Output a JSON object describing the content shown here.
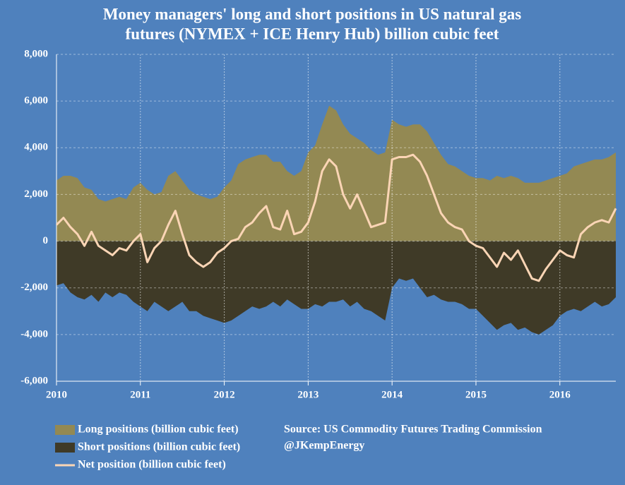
{
  "chart_data": {
    "type": "area",
    "title": [
      "Money managers' long and short positions in US natural gas",
      "futures (NYMEX + ICE Henry Hub) billion cubic feet"
    ],
    "annotations": [
      "Source: US Commodity Futures Trading Commission",
      "@JKempEnergy"
    ],
    "x": [
      2010.0,
      2010.083,
      2010.167,
      2010.25,
      2010.333,
      2010.417,
      2010.5,
      2010.583,
      2010.667,
      2010.75,
      2010.833,
      2010.917,
      2011.0,
      2011.083,
      2011.167,
      2011.25,
      2011.333,
      2011.417,
      2011.5,
      2011.583,
      2011.667,
      2011.75,
      2011.833,
      2011.917,
      2012.0,
      2012.083,
      2012.167,
      2012.25,
      2012.333,
      2012.417,
      2012.5,
      2012.583,
      2012.667,
      2012.75,
      2012.833,
      2012.917,
      2013.0,
      2013.083,
      2013.167,
      2013.25,
      2013.333,
      2013.417,
      2013.5,
      2013.583,
      2013.667,
      2013.75,
      2013.833,
      2013.917,
      2014.0,
      2014.083,
      2014.167,
      2014.25,
      2014.333,
      2014.417,
      2014.5,
      2014.583,
      2014.667,
      2014.75,
      2014.833,
      2014.917,
      2015.0,
      2015.083,
      2015.167,
      2015.25,
      2015.333,
      2015.417,
      2015.5,
      2015.583,
      2015.667,
      2015.75,
      2015.833,
      2015.917,
      2016.0,
      2016.083,
      2016.167,
      2016.25,
      2016.333,
      2016.417,
      2016.5,
      2016.583,
      2016.667
    ],
    "series": [
      {
        "name": "Long positions (billion cubic feet)",
        "color": "#938953",
        "kind": "area",
        "values": [
          2600,
          2800,
          2800,
          2700,
          2300,
          2200,
          1800,
          1700,
          1800,
          1900,
          1800,
          2300,
          2500,
          2200,
          2000,
          2100,
          2800,
          3000,
          2600,
          2200,
          2000,
          1900,
          1800,
          1900,
          2300,
          2600,
          3300,
          3500,
          3600,
          3700,
          3700,
          3400,
          3400,
          3000,
          2800,
          3000,
          3800,
          4100,
          5000,
          5800,
          5600,
          5000,
          4600,
          4400,
          4200,
          3900,
          3700,
          3800,
          5200,
          5000,
          4900,
          5000,
          5000,
          4700,
          4200,
          3700,
          3300,
          3200,
          3000,
          2800,
          2700,
          2700,
          2600,
          2800,
          2700,
          2800,
          2700,
          2500,
          2500,
          2500,
          2600,
          2700,
          2800,
          2900,
          3200,
          3300,
          3400,
          3500,
          3500,
          3600,
          3800
        ]
      },
      {
        "name": "Short positions (billion cubic feet)",
        "color": "#3f3a27",
        "kind": "area",
        "values": [
          -1900,
          -1800,
          -2200,
          -2400,
          -2500,
          -2300,
          -2600,
          -2200,
          -2400,
          -2200,
          -2300,
          -2600,
          -2800,
          -3000,
          -2600,
          -2800,
          -3000,
          -2800,
          -2600,
          -3000,
          -3000,
          -3200,
          -3300,
          -3400,
          -3500,
          -3400,
          -3200,
          -3000,
          -2800,
          -2900,
          -2800,
          -2600,
          -2800,
          -2500,
          -2700,
          -2900,
          -2900,
          -2700,
          -2800,
          -2600,
          -2600,
          -2500,
          -2800,
          -2600,
          -2900,
          -3000,
          -3200,
          -3400,
          -2000,
          -1600,
          -1700,
          -1600,
          -2000,
          -2400,
          -2300,
          -2500,
          -2600,
          -2600,
          -2700,
          -2900,
          -2900,
          -3200,
          -3500,
          -3800,
          -3600,
          -3500,
          -3800,
          -3700,
          -3900,
          -4000,
          -3800,
          -3600,
          -3200,
          -3000,
          -2900,
          -3000,
          -2800,
          -2600,
          -2800,
          -2700,
          -2400
        ]
      },
      {
        "name": "Net position (billion cubic feet)",
        "color": "#fbd5b5",
        "kind": "line",
        "values": [
          700,
          1000,
          600,
          300,
          -200,
          400,
          -200,
          -400,
          -600,
          -300,
          -400,
          0,
          300,
          -900,
          -300,
          0,
          700,
          1300,
          300,
          -600,
          -900,
          -1100,
          -900,
          -500,
          -300,
          0,
          100,
          600,
          800,
          1200,
          1500,
          600,
          500,
          1300,
          300,
          400,
          800,
          1700,
          3000,
          3500,
          3200,
          2000,
          1400,
          2000,
          1300,
          600,
          700,
          800,
          3500,
          3600,
          3600,
          3700,
          3400,
          2800,
          2000,
          1200,
          800,
          600,
          500,
          0,
          -200,
          -300,
          -700,
          -1100,
          -500,
          -800,
          -400,
          -1000,
          -1600,
          -1700,
          -1200,
          -800,
          -400,
          -600,
          -700,
          300,
          600,
          800,
          900,
          800,
          1400
        ]
      }
    ],
    "xlim": [
      2010,
      2016.667
    ],
    "xticks": [
      2010,
      2011,
      2012,
      2013,
      2014,
      2015,
      2016
    ],
    "ylim": [
      -6000,
      8000
    ],
    "yticks": [
      {
        "value": -6000,
        "label": "-6,000"
      },
      {
        "value": -4000,
        "label": "-4,000"
      },
      {
        "value": -2000,
        "label": "-2,000"
      },
      0,
      {
        "value": 2000,
        "label": "2,000"
      },
      {
        "value": 4000,
        "label": "4,000"
      },
      {
        "value": 6000,
        "label": "6,000"
      },
      {
        "value": 8000,
        "label": "8,000"
      }
    ],
    "grid": true
  }
}
